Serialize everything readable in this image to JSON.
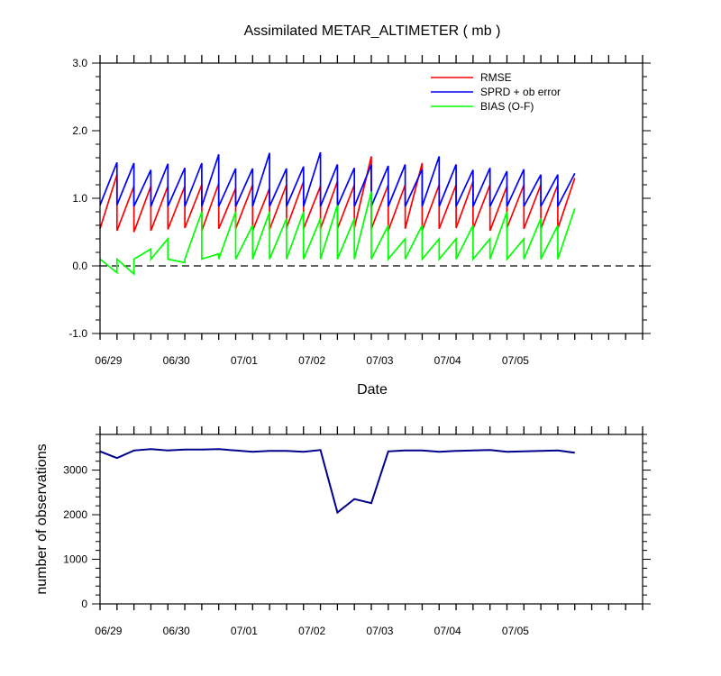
{
  "chart_data": [
    {
      "type": "line",
      "title": "Assimilated METAR_ALTIMETER ( mb )",
      "xlabel": "Date",
      "ylabel": "",
      "ylim": [
        -1.0,
        3.0
      ],
      "xlim": [
        0,
        32
      ],
      "y_ticks": [
        "-1.0",
        "0.0",
        "1.0",
        "2.0",
        "3.0"
      ],
      "y_tick_values": [
        -1.0,
        0.0,
        1.0,
        2.0,
        3.0
      ],
      "x_tick_labels": [
        "06/29",
        "06/30",
        "07/01",
        "07/02",
        "07/03",
        "07/04",
        "07/05"
      ],
      "x_tick_positions": [
        0.5,
        4.5,
        8.5,
        12.5,
        16.5,
        20.5,
        24.5
      ],
      "zero_line": true,
      "legend": {
        "position": "top-right",
        "entries": [
          "RMSE",
          "SPRD + ob error",
          "BIAS (O-F)"
        ]
      },
      "series": [
        {
          "name": "RMSE",
          "color": "#ff0000",
          "points": [
            [
              0,
              0.55
            ],
            [
              1,
              1.35
            ],
            [
              1,
              0.52
            ],
            [
              2,
              1.18
            ],
            [
              2,
              0.5
            ],
            [
              3,
              1.18
            ],
            [
              3,
              0.52
            ],
            [
              4,
              1.18
            ],
            [
              4,
              0.54
            ],
            [
              5,
              1.18
            ],
            [
              5,
              0.56
            ],
            [
              6,
              1.2
            ],
            [
              6,
              0.52
            ],
            [
              7,
              1.22
            ],
            [
              7,
              0.55
            ],
            [
              8,
              1.15
            ],
            [
              8,
              0.55
            ],
            [
              9,
              1.2
            ],
            [
              9,
              0.52
            ],
            [
              10,
              1.15
            ],
            [
              10,
              0.54
            ],
            [
              11,
              1.2
            ],
            [
              11,
              0.56
            ],
            [
              12,
              1.25
            ],
            [
              12,
              0.55
            ],
            [
              13,
              1.18
            ],
            [
              13,
              0.55
            ],
            [
              14,
              1.25
            ],
            [
              14,
              0.55
            ],
            [
              15,
              1.2
            ],
            [
              15,
              0.56
            ],
            [
              16,
              1.62
            ],
            [
              16,
              0.55
            ],
            [
              17,
              1.2
            ],
            [
              17,
              0.52
            ],
            [
              18,
              1.2
            ],
            [
              18,
              0.55
            ],
            [
              19,
              1.52
            ],
            [
              19,
              0.52
            ],
            [
              20,
              1.2
            ],
            [
              20,
              0.55
            ],
            [
              21,
              1.2
            ],
            [
              21,
              0.56
            ],
            [
              22,
              1.25
            ],
            [
              22,
              0.55
            ],
            [
              23,
              1.2
            ],
            [
              23,
              0.52
            ],
            [
              24,
              1.18
            ],
            [
              24,
              0.56
            ],
            [
              25,
              1.2
            ],
            [
              25,
              0.55
            ],
            [
              26,
              1.2
            ],
            [
              26,
              0.55
            ],
            [
              27,
              1.2
            ],
            [
              27,
              0.55
            ],
            [
              28,
              1.3
            ]
          ]
        },
        {
          "name": "SPRD + ob error",
          "color": "#0000ff",
          "points": [
            [
              0,
              0.9
            ],
            [
              1,
              1.53
            ],
            [
              1,
              0.9
            ],
            [
              2,
              1.52
            ],
            [
              2,
              0.88
            ],
            [
              3,
              1.42
            ],
            [
              3,
              0.88
            ],
            [
              4,
              1.51
            ],
            [
              4,
              0.88
            ],
            [
              5,
              1.45
            ],
            [
              5,
              0.88
            ],
            [
              6,
              1.52
            ],
            [
              6,
              0.88
            ],
            [
              7,
              1.65
            ],
            [
              7,
              0.88
            ],
            [
              8,
              1.44
            ],
            [
              8,
              0.88
            ],
            [
              9,
              1.44
            ],
            [
              9,
              0.88
            ],
            [
              10,
              1.67
            ],
            [
              10,
              0.88
            ],
            [
              11,
              1.44
            ],
            [
              11,
              0.88
            ],
            [
              12,
              1.47
            ],
            [
              12,
              0.88
            ],
            [
              13,
              1.68
            ],
            [
              13,
              0.88
            ],
            [
              14,
              1.5
            ],
            [
              14,
              0.88
            ],
            [
              15,
              1.45
            ],
            [
              15,
              0.88
            ],
            [
              16,
              1.5
            ],
            [
              16,
              0.88
            ],
            [
              17,
              1.48
            ],
            [
              17,
              0.88
            ],
            [
              18,
              1.5
            ],
            [
              18,
              0.88
            ],
            [
              19,
              1.43
            ],
            [
              19,
              0.88
            ],
            [
              20,
              1.62
            ],
            [
              20,
              0.88
            ],
            [
              21,
              1.5
            ],
            [
              21,
              0.88
            ],
            [
              22,
              1.42
            ],
            [
              22,
              0.88
            ],
            [
              23,
              1.45
            ],
            [
              23,
              0.88
            ],
            [
              24,
              1.4
            ],
            [
              24,
              0.88
            ],
            [
              25,
              1.43
            ],
            [
              25,
              0.88
            ],
            [
              26,
              1.35
            ],
            [
              26,
              0.88
            ],
            [
              27,
              1.35
            ],
            [
              27,
              0.88
            ],
            [
              28,
              1.37
            ]
          ]
        },
        {
          "name": "BIAS (O-F)",
          "color": "#00ff00",
          "points": [
            [
              0,
              0.1
            ],
            [
              1,
              -0.1
            ],
            [
              1,
              0.1
            ],
            [
              2,
              -0.12
            ],
            [
              2,
              0.1
            ],
            [
              3,
              0.25
            ],
            [
              3,
              0.1
            ],
            [
              4,
              0.4
            ],
            [
              4,
              0.1
            ],
            [
              5,
              0.05
            ],
            [
              5,
              0.1
            ],
            [
              6,
              0.8
            ],
            [
              6,
              0.1
            ],
            [
              7,
              0.18
            ],
            [
              7,
              0.1
            ],
            [
              8,
              0.8
            ],
            [
              8,
              0.1
            ],
            [
              9,
              0.6
            ],
            [
              9,
              0.1
            ],
            [
              10,
              0.8
            ],
            [
              10,
              0.1
            ],
            [
              11,
              0.7
            ],
            [
              11,
              0.1
            ],
            [
              12,
              0.8
            ],
            [
              12,
              0.1
            ],
            [
              13,
              0.7
            ],
            [
              13,
              0.1
            ],
            [
              14,
              0.9
            ],
            [
              14,
              0.1
            ],
            [
              15,
              0.7
            ],
            [
              15,
              0.1
            ],
            [
              16,
              1.1
            ],
            [
              16,
              0.1
            ],
            [
              17,
              0.6
            ],
            [
              17,
              0.1
            ],
            [
              18,
              0.4
            ],
            [
              18,
              0.1
            ],
            [
              19,
              0.6
            ],
            [
              19,
              0.1
            ],
            [
              20,
              0.4
            ],
            [
              20,
              0.1
            ],
            [
              21,
              0.4
            ],
            [
              21,
              0.1
            ],
            [
              22,
              0.6
            ],
            [
              22,
              0.1
            ],
            [
              23,
              0.4
            ],
            [
              23,
              0.1
            ],
            [
              24,
              0.8
            ],
            [
              24,
              0.1
            ],
            [
              25,
              0.4
            ],
            [
              25,
              0.1
            ],
            [
              26,
              0.7
            ],
            [
              26,
              0.1
            ],
            [
              27,
              0.6
            ],
            [
              27,
              0.1
            ],
            [
              28,
              0.85
            ]
          ]
        }
      ]
    },
    {
      "type": "line",
      "title": "",
      "xlabel": "",
      "ylabel": "number of observations",
      "ylim": [
        0,
        3800
      ],
      "xlim": [
        0,
        32
      ],
      "y_ticks": [
        "0",
        "1000",
        "2000",
        "3000"
      ],
      "y_tick_values": [
        0,
        1000,
        2000,
        3000
      ],
      "x_tick_labels": [
        "06/29",
        "06/30",
        "07/01",
        "07/02",
        "07/03",
        "07/04",
        "07/05"
      ],
      "x_tick_positions": [
        0.5,
        4.5,
        8.5,
        12.5,
        16.5,
        20.5,
        24.5
      ],
      "series": [
        {
          "name": "number of observations",
          "color": "#00008b",
          "points": [
            [
              0,
              3420
            ],
            [
              1,
              3270
            ],
            [
              2,
              3440
            ],
            [
              3,
              3470
            ],
            [
              4,
              3440
            ],
            [
              5,
              3460
            ],
            [
              6,
              3460
            ],
            [
              7,
              3470
            ],
            [
              8,
              3440
            ],
            [
              9,
              3410
            ],
            [
              10,
              3430
            ],
            [
              11,
              3430
            ],
            [
              12,
              3410
            ],
            [
              13,
              3450
            ],
            [
              14,
              2050
            ],
            [
              15,
              2350
            ],
            [
              16,
              2260
            ],
            [
              17,
              3420
            ],
            [
              18,
              3440
            ],
            [
              19,
              3440
            ],
            [
              20,
              3410
            ],
            [
              21,
              3430
            ],
            [
              22,
              3440
            ],
            [
              23,
              3450
            ],
            [
              24,
              3410
            ],
            [
              25,
              3420
            ],
            [
              26,
              3430
            ],
            [
              27,
              3440
            ],
            [
              28,
              3390
            ]
          ]
        }
      ]
    }
  ]
}
